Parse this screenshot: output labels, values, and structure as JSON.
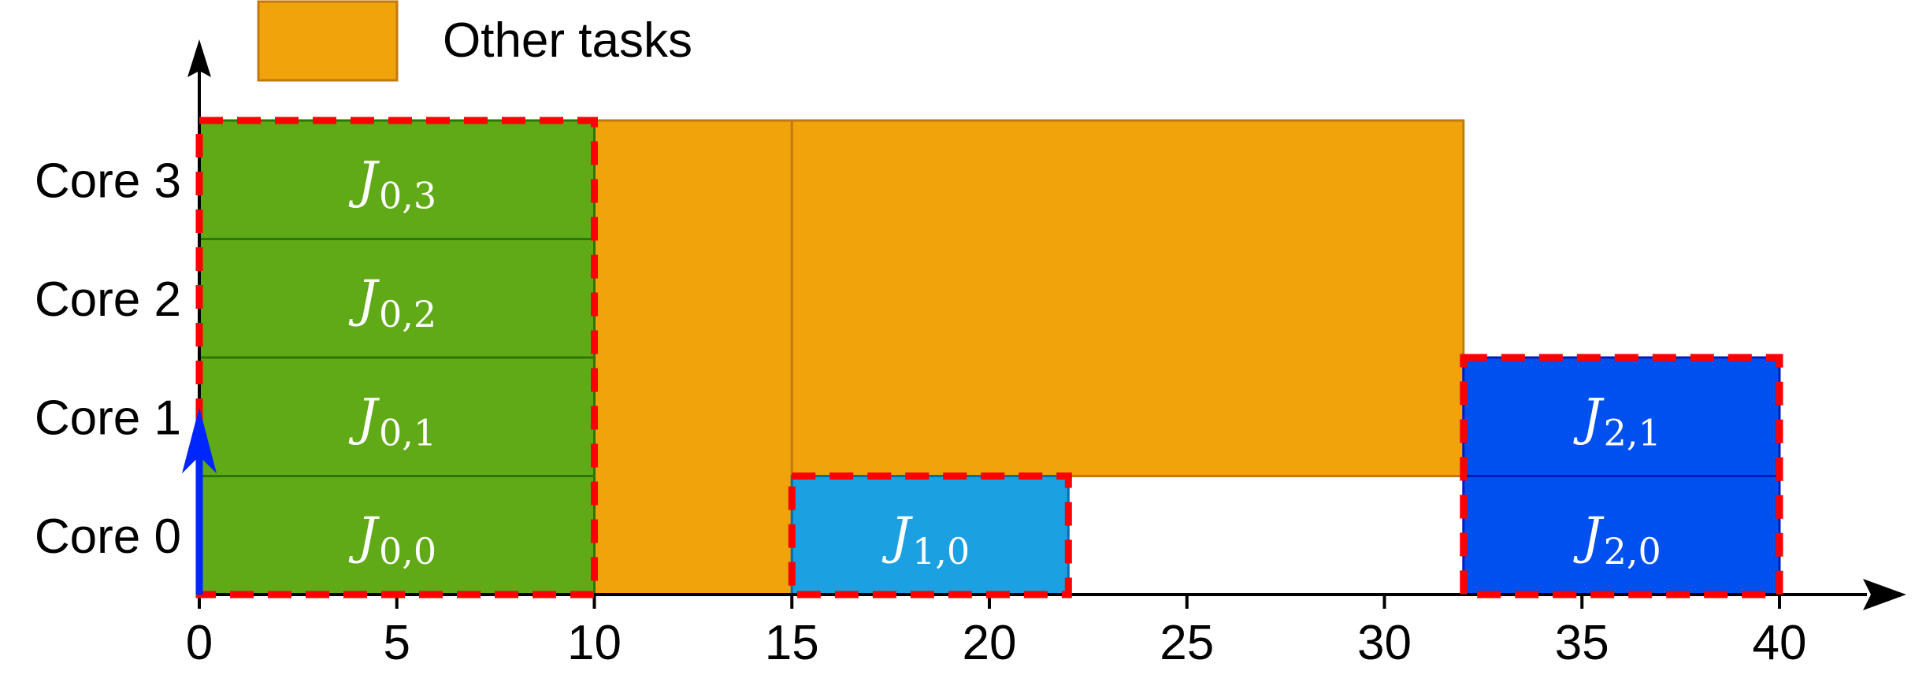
{
  "chart_data": {
    "type": "gantt",
    "x_ticks": [
      0,
      5,
      10,
      15,
      20,
      25,
      30,
      35,
      40
    ],
    "xlim": [
      0,
      42
    ],
    "cores": [
      "Core 0",
      "Core 1",
      "Core 2",
      "Core 3"
    ],
    "legend": {
      "label": "Other tasks",
      "color": "#f0a30a",
      "position": "top-left"
    },
    "colors": {
      "other": "#f0a30a",
      "other_edge": "#c07a10",
      "job0": "#60a917",
      "job0_edge": "#2d7600",
      "job1": "#1ba1e2",
      "job1_edge": "#006eaf",
      "job2": "#0050ef",
      "job2_edge": "#001dbc",
      "job_group_outline": "#ff0000",
      "release_arrow": "#0026ff"
    },
    "other_tasks": [
      {
        "start": 10,
        "end": 15,
        "core_from": 0,
        "core_to": 3
      },
      {
        "start": 15,
        "end": 32,
        "core_from": 1,
        "core_to": 3
      }
    ],
    "jobs": [
      {
        "group": 0,
        "start": 0,
        "end": 10,
        "core": 0,
        "base": "J",
        "sub": "0,0"
      },
      {
        "group": 0,
        "start": 0,
        "end": 10,
        "core": 1,
        "base": "J",
        "sub": "0,1"
      },
      {
        "group": 0,
        "start": 0,
        "end": 10,
        "core": 2,
        "base": "J",
        "sub": "0,2"
      },
      {
        "group": 0,
        "start": 0,
        "end": 10,
        "core": 3,
        "base": "J",
        "sub": "0,3"
      },
      {
        "group": 1,
        "start": 15,
        "end": 22,
        "core": 0,
        "base": "J",
        "sub": "1,0"
      },
      {
        "group": 2,
        "start": 32,
        "end": 40,
        "core": 0,
        "base": "J",
        "sub": "2,0"
      },
      {
        "group": 2,
        "start": 32,
        "end": 40,
        "core": 1,
        "base": "J",
        "sub": "2,1"
      }
    ],
    "job_groups": [
      {
        "group": 0,
        "start": 0,
        "end": 10,
        "core_from": 0,
        "core_to": 3
      },
      {
        "group": 1,
        "start": 15,
        "end": 22,
        "core_from": 0,
        "core_to": 0
      },
      {
        "group": 2,
        "start": 32,
        "end": 40,
        "core_from": 0,
        "core_to": 1
      }
    ],
    "release_arrow": {
      "x": 0,
      "height_cores": 1.5
    }
  }
}
